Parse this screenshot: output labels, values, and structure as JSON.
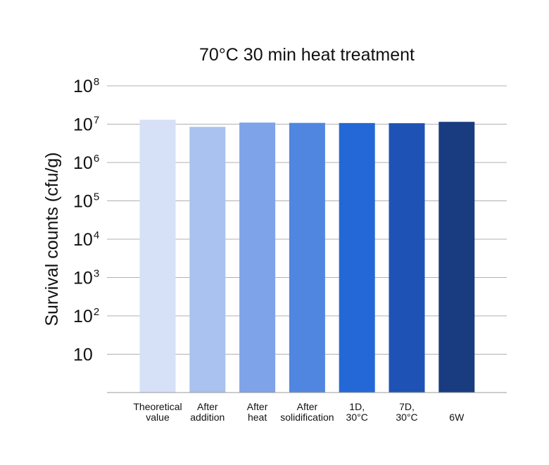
{
  "chart_data": {
    "type": "bar",
    "title": "70°C  30 min heat treatment",
    "ylabel": "Survival counts (cfu/g)",
    "xlabel": "",
    "y_scale": "log",
    "ylim": [
      1,
      100000000
    ],
    "grid": "horizontal",
    "y_ticks": [
      {
        "value": 10,
        "base": "10",
        "exp": ""
      },
      {
        "value": 100,
        "base": "10",
        "exp": "2"
      },
      {
        "value": 1000,
        "base": "10",
        "exp": "3"
      },
      {
        "value": 10000,
        "base": "10",
        "exp": "4"
      },
      {
        "value": 100000,
        "base": "10",
        "exp": "5"
      },
      {
        "value": 1000000,
        "base": "10",
        "exp": "6"
      },
      {
        "value": 10000000,
        "base": "10",
        "exp": "7"
      },
      {
        "value": 100000000,
        "base": "10",
        "exp": "8"
      }
    ],
    "categories": [
      [
        "Theoretical",
        "value"
      ],
      [
        "After",
        "addition"
      ],
      [
        "After",
        "heat"
      ],
      [
        "After",
        "solidification"
      ],
      [
        "1D,",
        "30°C"
      ],
      [
        "7D,",
        "30°C"
      ],
      [
        "6W"
      ]
    ],
    "values": [
      13000000,
      8500000,
      11000000,
      10800000,
      10700000,
      10600000,
      11500000
    ],
    "colors": [
      "#d6e0f6",
      "#a9c2ef",
      "#7fa3e8",
      "#5186e0",
      "#2468d8",
      "#1e53b5",
      "#193c80"
    ]
  }
}
